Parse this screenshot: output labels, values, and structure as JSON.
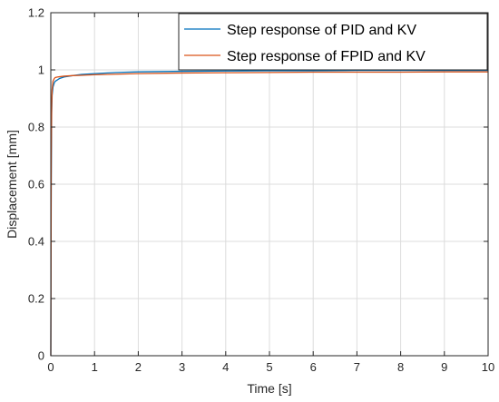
{
  "chart_data": {
    "type": "line",
    "xlabel": "Time [s]",
    "ylabel": "Displacement [mm]",
    "xlim": [
      0,
      10
    ],
    "ylim": [
      0,
      1.2
    ],
    "xticks": [
      0,
      1,
      2,
      3,
      4,
      5,
      6,
      7,
      8,
      9,
      10
    ],
    "yticks": [
      0,
      0.2,
      0.4,
      0.6,
      0.8,
      1,
      1.2
    ],
    "xtick_labels": [
      "0",
      "1",
      "2",
      "3",
      "4",
      "5",
      "6",
      "7",
      "8",
      "9",
      "10"
    ],
    "ytick_labels": [
      "0",
      "0.2",
      "0.4",
      "0.6",
      "0.8",
      "1",
      "1.2"
    ],
    "grid": true,
    "legend_position": "top-right",
    "series": [
      {
        "name": "Step response of PID and KV",
        "color": "#0072BD",
        "x": [
          0,
          0.005,
          0.01,
          0.02,
          0.03,
          0.05,
          0.08,
          0.1,
          0.15,
          0.2,
          0.3,
          0.5,
          0.7,
          1,
          1.5,
          2,
          3,
          4,
          5,
          6,
          7,
          8,
          9,
          10
        ],
        "y": [
          0,
          0.3,
          0.6,
          0.85,
          0.91,
          0.94,
          0.955,
          0.96,
          0.965,
          0.97,
          0.975,
          0.98,
          0.984,
          0.987,
          0.991,
          0.993,
          0.995,
          0.996,
          0.997,
          0.997,
          0.998,
          0.998,
          0.998,
          0.998
        ]
      },
      {
        "name": "Step response of FPID and KV",
        "color": "#D95319",
        "x": [
          0,
          0.005,
          0.01,
          0.02,
          0.03,
          0.05,
          0.08,
          0.1,
          0.15,
          0.2,
          0.3,
          0.5,
          0.7,
          1,
          1.5,
          2,
          3,
          4,
          5,
          6,
          7,
          8,
          9,
          10
        ],
        "y": [
          0,
          0.35,
          0.7,
          0.88,
          0.93,
          0.96,
          0.97,
          0.973,
          0.975,
          0.976,
          0.978,
          0.98,
          0.981,
          0.983,
          0.985,
          0.987,
          0.989,
          0.99,
          0.991,
          0.992,
          0.992,
          0.992,
          0.993,
          0.993
        ]
      }
    ]
  }
}
